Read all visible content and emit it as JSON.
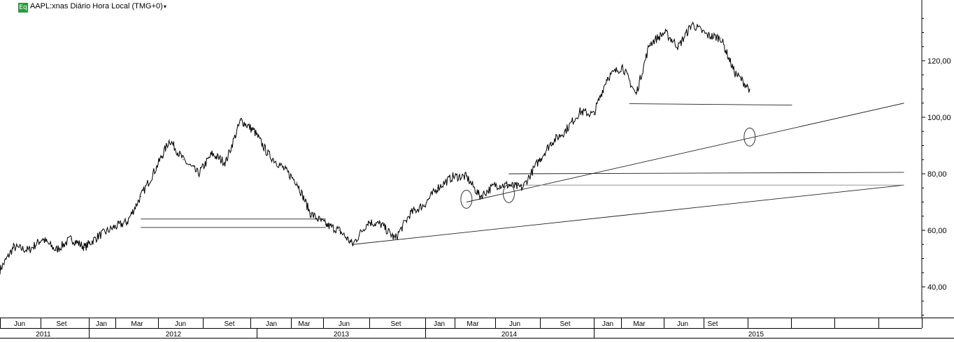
{
  "header": {
    "badge": "Eq",
    "title": "AAPL:xnas Diário Hora Local (TMG+0)",
    "caret": "▾"
  },
  "chart_data": {
    "type": "line",
    "y_ticks": [
      "40,00",
      "60,00",
      "80,00",
      "100,00",
      "120,00"
    ],
    "ylim": [
      28,
      138
    ],
    "month_labels": [
      "Jun",
      "Set",
      "Jan",
      "Mar",
      "Jun",
      "Set",
      "Jan",
      "Mar",
      "Jun",
      "Set",
      "Jan",
      "Mar",
      "Jun",
      "Set",
      "Jan",
      "Mar",
      "Jun",
      "Set"
    ],
    "year_labels": [
      "2011",
      "2012",
      "2013",
      "2014",
      "2015"
    ],
    "series": [
      {
        "values": [
          [
            2011.25,
            46
          ],
          [
            2011.33,
            54
          ],
          [
            2011.42,
            53
          ],
          [
            2011.5,
            57
          ],
          [
            2011.58,
            53
          ],
          [
            2011.67,
            57
          ],
          [
            2011.75,
            54
          ],
          [
            2011.83,
            58
          ],
          [
            2011.92,
            61
          ],
          [
            2012.0,
            63
          ],
          [
            2012.08,
            72
          ],
          [
            2012.17,
            82
          ],
          [
            2012.25,
            92
          ],
          [
            2012.33,
            85
          ],
          [
            2012.42,
            80
          ],
          [
            2012.5,
            87
          ],
          [
            2012.58,
            84
          ],
          [
            2012.67,
            99
          ],
          [
            2012.75,
            95
          ],
          [
            2012.83,
            87
          ],
          [
            2012.92,
            82
          ],
          [
            2013.0,
            77
          ],
          [
            2013.08,
            66
          ],
          [
            2013.17,
            62
          ],
          [
            2013.25,
            60
          ],
          [
            2013.33,
            55
          ],
          [
            2013.42,
            63
          ],
          [
            2013.5,
            62
          ],
          [
            2013.58,
            57
          ],
          [
            2013.67,
            66
          ],
          [
            2013.75,
            69
          ],
          [
            2013.83,
            75
          ],
          [
            2013.92,
            79
          ],
          [
            2014.0,
            79
          ],
          [
            2014.08,
            72
          ],
          [
            2014.17,
            76
          ],
          [
            2014.25,
            76
          ],
          [
            2014.33,
            75
          ],
          [
            2014.42,
            84
          ],
          [
            2014.5,
            91
          ],
          [
            2014.58,
            95
          ],
          [
            2014.67,
            102
          ],
          [
            2014.75,
            101
          ],
          [
            2014.83,
            114
          ],
          [
            2014.92,
            118
          ],
          [
            2015.0,
            108
          ],
          [
            2015.08,
            126
          ],
          [
            2015.17,
            130
          ],
          [
            2015.25,
            125
          ],
          [
            2015.33,
            133
          ],
          [
            2015.42,
            129
          ],
          [
            2015.5,
            128
          ],
          [
            2015.58,
            116
          ],
          [
            2015.67,
            110
          ]
        ]
      }
    ],
    "annotation_lines": [
      {
        "kind": "support",
        "from": [
          2012.08,
          61
        ],
        "to": [
          2013.17,
          61
        ]
      },
      {
        "kind": "resistance",
        "from": [
          2012.08,
          64
        ],
        "to": [
          2013.17,
          64
        ]
      },
      {
        "kind": "trend",
        "from": [
          2013.33,
          55
        ],
        "to": [
          2016.58,
          76
        ]
      },
      {
        "kind": "trend",
        "from": [
          2014.0,
          70
        ],
        "to": [
          2016.58,
          105
        ]
      },
      {
        "kind": "horizontal",
        "from": [
          2014.25,
          80
        ],
        "to": [
          2016.58,
          80.5
        ]
      },
      {
        "kind": "horizontal",
        "from": [
          2014.25,
          76
        ],
        "to": [
          2016.58,
          76
        ]
      },
      {
        "kind": "horizontal",
        "from": [
          2014.96,
          104.8
        ],
        "to": [
          2015.92,
          104.3
        ]
      }
    ],
    "circles": [
      [
        2014.0,
        71
      ],
      [
        2014.25,
        73
      ],
      [
        2015.67,
        93
      ]
    ]
  }
}
